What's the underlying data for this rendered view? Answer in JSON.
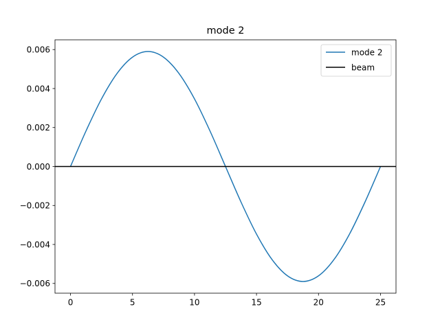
{
  "chart_data": {
    "type": "line",
    "title": "mode 2",
    "xlabel": "",
    "ylabel": "",
    "xlim": [
      -1.25,
      26.25
    ],
    "ylim": [
      -0.0065,
      0.0065
    ],
    "x_ticks": [
      0,
      5,
      10,
      15,
      20,
      25
    ],
    "x_tick_labels": [
      "0",
      "5",
      "10",
      "15",
      "20",
      "25"
    ],
    "y_ticks": [
      -0.006,
      -0.004,
      -0.002,
      0.0,
      0.002,
      0.004,
      0.006
    ],
    "y_tick_labels": [
      "−0.006",
      "−0.004",
      "−0.002",
      "0.000",
      "0.002",
      "0.004",
      "0.006"
    ],
    "grid": false,
    "legend_position": "upper right",
    "series": [
      {
        "name": "mode 2",
        "color": "#1f77b4",
        "x": [
          0,
          1.25,
          2.5,
          3.75,
          5,
          6.25,
          7.5,
          8.75,
          10,
          11.25,
          12.5,
          13.75,
          15,
          16.25,
          17.5,
          18.75,
          20,
          21.25,
          22.5,
          23.75,
          25
        ],
        "y": [
          0,
          0.001823,
          0.003468,
          0.004773,
          0.005611,
          0.0059,
          0.005611,
          0.004773,
          0.003468,
          0.001823,
          0,
          -0.001823,
          -0.003468,
          -0.004773,
          -0.005611,
          -0.0059,
          -0.005611,
          -0.004773,
          -0.003468,
          -0.001823,
          0
        ]
      },
      {
        "name": "beam",
        "color": "#000000",
        "x": [
          -1.25,
          26.25
        ],
        "y": [
          0,
          0
        ]
      }
    ]
  }
}
